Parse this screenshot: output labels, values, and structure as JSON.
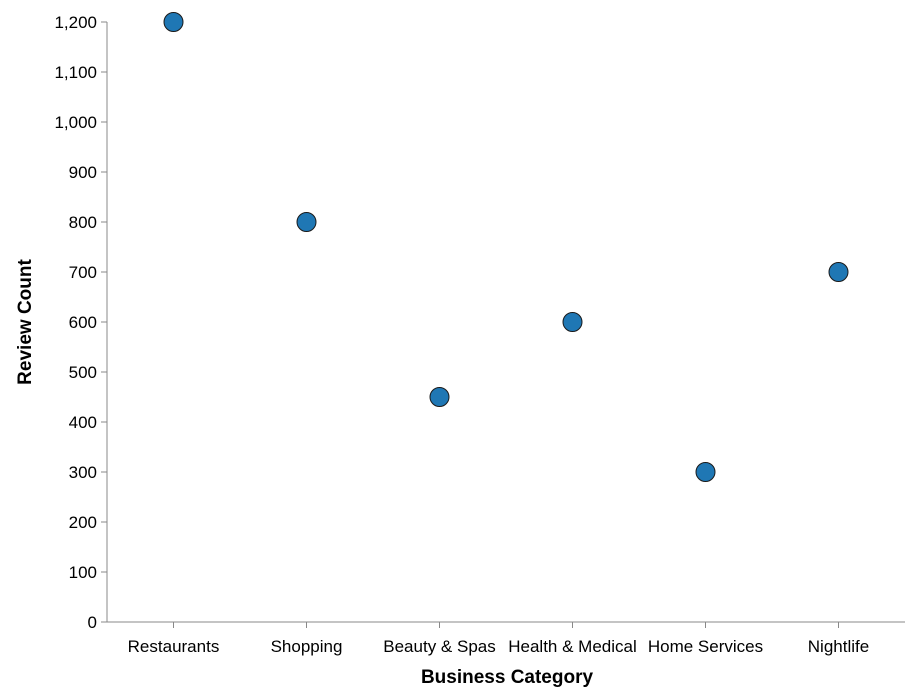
{
  "chart_data": {
    "type": "scatter",
    "xlabel": "Business Category",
    "ylabel": "Review Count",
    "categories": [
      "Restaurants",
      "Shopping",
      "Beauty & Spas",
      "Health & Medical",
      "Home Services",
      "Nightlife"
    ],
    "values": [
      1200,
      800,
      450,
      600,
      300,
      700
    ],
    "ylim": [
      0,
      1200
    ],
    "yticks": [
      0,
      100,
      200,
      300,
      400,
      500,
      600,
      700,
      800,
      900,
      1000,
      1100,
      1200
    ],
    "ytick_labels": [
      "0",
      "100",
      "200",
      "300",
      "400",
      "500",
      "600",
      "700",
      "800",
      "900",
      "1,000",
      "1,100",
      "1,200"
    ],
    "grid": false,
    "legend": "none",
    "point_color": "#1f77b4",
    "point_stroke": "#1a1a1a",
    "axis_color": "#888888"
  }
}
